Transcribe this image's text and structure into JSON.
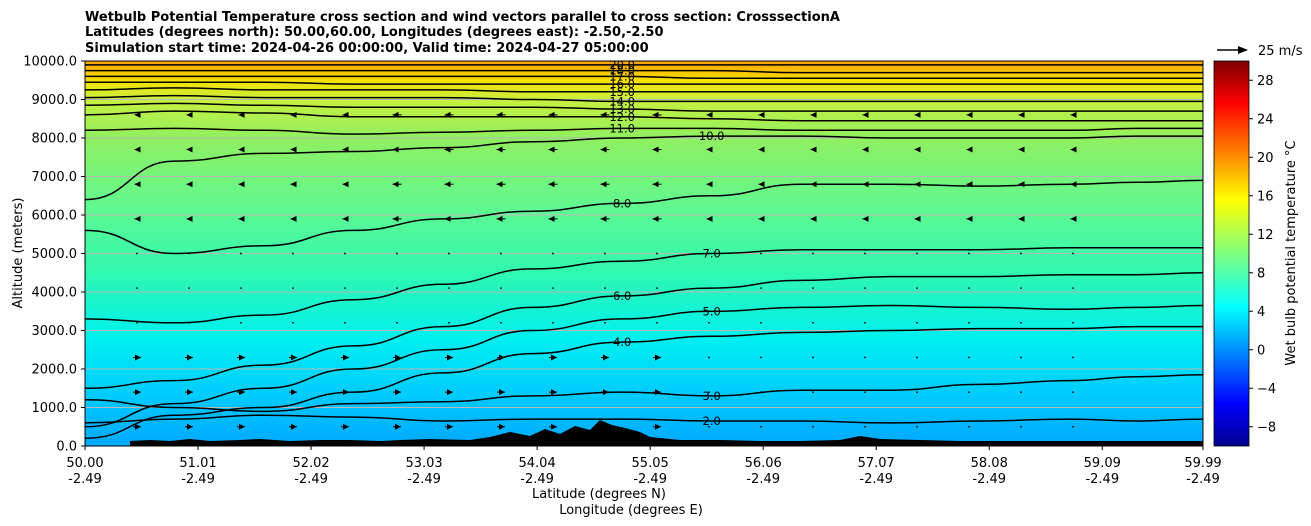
{
  "title_lines": [
    "Wetbulb Potential Temperature cross section and wind vectors parallel to cross section: CrosssectionA",
    "Latitudes (degrees north): 50.00,60.00, Longitudes (degrees east): -2.50,-2.50",
    "Simulation start time: 2024-04-26 00:00:00, Valid time: 2024-04-27 05:00:00"
  ],
  "chart_data": {
    "type": "heatmap",
    "y_axis": {
      "label": "Altitude (meters)",
      "range": [
        0,
        10000
      ],
      "ticks": [
        "0.0",
        "1000.0",
        "2000.0",
        "3000.0",
        "4000.0",
        "5000.0",
        "6000.0",
        "7000.0",
        "8000.0",
        "9000.0",
        "10000.0"
      ],
      "grid": true
    },
    "x_axis": {
      "label_lat": "Latitude (degrees N)",
      "label_lon": "Longitude (degrees E)",
      "range": [
        50.0,
        59.99
      ],
      "ticks_lat": [
        "50.00",
        "51.01",
        "52.02",
        "53.03",
        "54.04",
        "55.05",
        "56.06",
        "57.07",
        "58.08",
        "59.09",
        "59.99"
      ],
      "ticks_lon": [
        "-2.49",
        "-2.49",
        "-2.49",
        "-2.49",
        "-2.49",
        "-2.49",
        "-2.49",
        "-2.49",
        "-2.49",
        "-2.49",
        "-2.49"
      ]
    },
    "colorbar": {
      "label": "Wet bulb potential temperature °C",
      "range": [
        -10,
        30
      ],
      "ticks": [
        "−8",
        "−4",
        "0",
        "4",
        "8",
        "12",
        "16",
        "20",
        "24",
        "28"
      ],
      "colormap": "jet"
    },
    "wind_key_label": "25 m/s",
    "contours": [
      {
        "level": 2.0,
        "label": "2.0",
        "altitude_m": [
          600,
          700,
          800,
          750,
          650,
          700,
          700,
          650,
          650,
          600,
          650,
          700,
          650,
          700
        ]
      },
      {
        "level": 3.0,
        "label": "3.0",
        "altitude_m": [
          1200,
          1000,
          900,
          1100,
          1150,
          1300,
          1400,
          1300,
          1450,
          1450,
          1600,
          1700,
          1800,
          1850
        ]
      },
      {
        "level": 4.0,
        "label": "4.0",
        "altitude_m": [
          200,
          800,
          1000,
          1400,
          1900,
          2400,
          2700,
          2850,
          2950,
          3000,
          3050,
          3050,
          3100,
          3100
        ]
      },
      {
        "level": 5.0,
        "label": "5.0",
        "altitude_m": [
          500,
          1100,
          1500,
          2000,
          2500,
          3000,
          3300,
          3500,
          3600,
          3650,
          3600,
          3550,
          3600,
          3650
        ]
      },
      {
        "level": 6.0,
        "label": "6.0",
        "altitude_m": [
          1500,
          1700,
          2100,
          2600,
          3100,
          3600,
          3900,
          4100,
          4300,
          4400,
          4400,
          4450,
          4450,
          4500
        ]
      },
      {
        "level": 7.0,
        "label": "7.0",
        "altitude_m": [
          3300,
          3200,
          3400,
          3800,
          4200,
          4600,
          4800,
          5000,
          5100,
          5100,
          5100,
          5150,
          5150,
          5150
        ]
      },
      {
        "level": 8.0,
        "label": "8.0",
        "altitude_m": [
          5600,
          5000,
          5200,
          5600,
          5900,
          6100,
          6300,
          6500,
          6800,
          6800,
          6750,
          6800,
          6850,
          6900
        ]
      },
      {
        "level": 10.0,
        "label": "10.0",
        "altitude_m": [
          6400,
          7400,
          7600,
          7650,
          7750,
          7900,
          8000,
          8050,
          8050,
          8000,
          8000,
          8000,
          8050,
          8050
        ]
      },
      {
        "level": 11.0,
        "label": "11.0",
        "altitude_m": [
          8200,
          8250,
          8200,
          8100,
          8150,
          8200,
          8250,
          8250,
          8200,
          8200,
          8200,
          8200,
          8250,
          8250
        ]
      },
      {
        "level": 12.0,
        "label": "12.0",
        "altitude_m": [
          8600,
          8700,
          8650,
          8550,
          8550,
          8550,
          8550,
          8500,
          8450,
          8450,
          8450,
          8450,
          8450,
          8450
        ]
      },
      {
        "level": 13.0,
        "label": "13.0",
        "altitude_m": [
          8850,
          8900,
          8850,
          8800,
          8800,
          8800,
          8750,
          8700,
          8700,
          8700,
          8700,
          8700,
          8700,
          8700
        ]
      },
      {
        "level": 14.0,
        "label": "14.0",
        "altitude_m": [
          9050,
          9100,
          9050,
          9050,
          9050,
          9000,
          8950,
          8950,
          8950,
          8950,
          8950,
          8950,
          8950,
          8950
        ]
      },
      {
        "level": 15.0,
        "label": "15.0",
        "altitude_m": [
          9250,
          9300,
          9250,
          9250,
          9250,
          9200,
          9200,
          9200,
          9200,
          9200,
          9200,
          9200,
          9200,
          9200
        ]
      },
      {
        "level": 16.0,
        "label": "16.0",
        "altitude_m": [
          9450,
          9450,
          9450,
          9400,
          9400,
          9400,
          9400,
          9400,
          9400,
          9400,
          9400,
          9400,
          9400,
          9400
        ]
      },
      {
        "level": 17.0,
        "label": "17.0",
        "altitude_m": [
          9600,
          9600,
          9600,
          9600,
          9600,
          9600,
          9600,
          9550,
          9550,
          9550,
          9550,
          9550,
          9550,
          9550
        ]
      },
      {
        "level": 18.0,
        "label": "18.0",
        "altitude_m": [
          9750,
          9750,
          9750,
          9750,
          9750,
          9750,
          9750,
          9750,
          9700,
          9700,
          9700,
          9700,
          9700,
          9700
        ]
      },
      {
        "level": 20.0,
        "label": "20.0",
        "altitude_m": [
          9900,
          9900,
          9900,
          9900,
          9900,
          9900,
          9900,
          9900,
          9900,
          9900,
          9900,
          9900,
          9900,
          9900
        ]
      }
    ],
    "contour_x_lat": [
      50.0,
      50.8,
      51.6,
      52.4,
      53.2,
      54.0,
      54.8,
      55.6,
      56.4,
      57.2,
      58.0,
      58.8,
      59.4,
      59.99
    ]
  }
}
